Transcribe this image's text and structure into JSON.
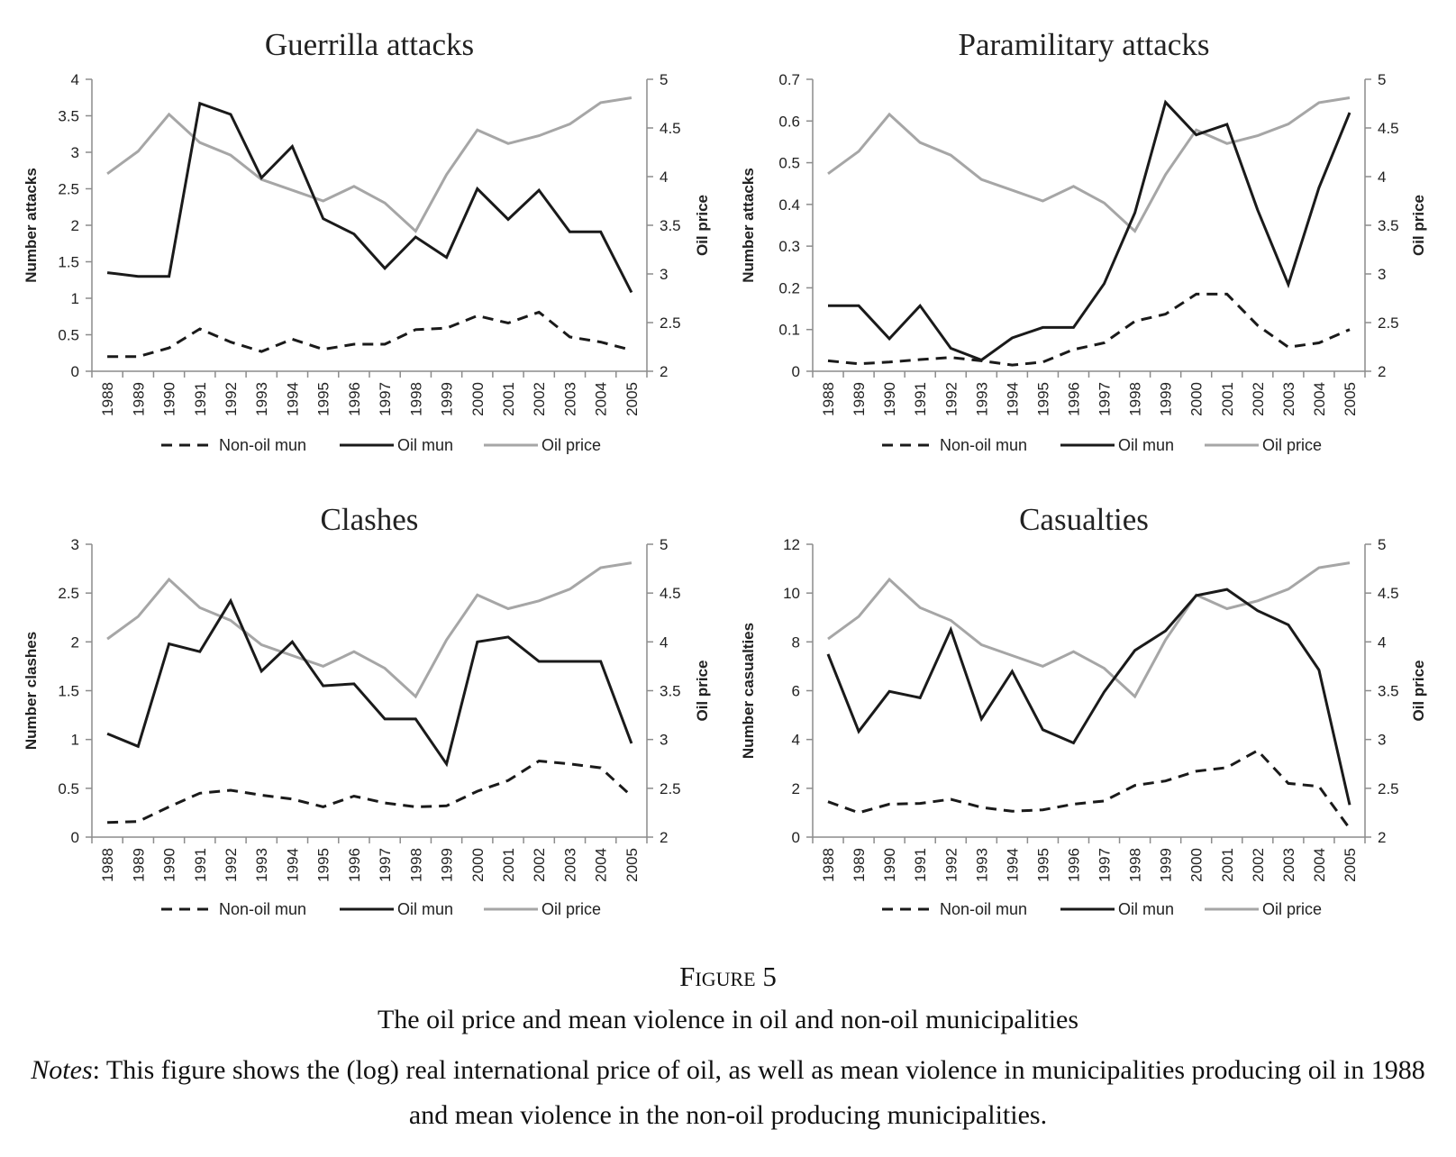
{
  "figure": {
    "label": "Figure 5",
    "title": "The oil price and mean violence in oil and non-oil municipalities",
    "notes_label": "Notes",
    "notes_text": ": This figure shows the (log) real international price of oil, as well as mean violence in municipalities producing oil in 1988 and mean violence in the non-oil producing municipalities."
  },
  "legend_labels": [
    "Non-oil mun",
    "Oil mun",
    "Oil price"
  ],
  "colors": {
    "non_oil": "#1a1a1a",
    "oil_mun": "#1a1a1a",
    "oil_price": "#a6a6a6",
    "axis": "#8c8c8c"
  },
  "chart_data": [
    {
      "type": "line",
      "title": "Guerrilla attacks",
      "ylabel": "Number attacks",
      "y2label": "Oil price",
      "ylim": [
        0,
        4
      ],
      "yticks": [
        "0",
        "0.5",
        "1",
        "1.5",
        "2",
        "2.5",
        "3",
        "3.5",
        "4"
      ],
      "y2lim": [
        2,
        5
      ],
      "y2ticks": [
        "2",
        "2.5",
        "3",
        "3.5",
        "4",
        "4.5",
        "5"
      ],
      "categories": [
        "1988",
        "1989",
        "1990",
        "1991",
        "1992",
        "1993",
        "1994",
        "1995",
        "1996",
        "1997",
        "1998",
        "1999",
        "2000",
        "2001",
        "2002",
        "2003",
        "2004",
        "2005"
      ],
      "legend": "bottom",
      "series": [
        {
          "name": "Non-oil mun",
          "axis": "left",
          "style": "dashed",
          "values": [
            0.2,
            0.2,
            0.32,
            0.58,
            0.4,
            0.27,
            0.44,
            0.3,
            0.37,
            0.37,
            0.57,
            0.59,
            0.76,
            0.66,
            0.81,
            0.47,
            0.4,
            0.29
          ]
        },
        {
          "name": "Oil mun",
          "axis": "left",
          "style": "solid",
          "values": [
            1.35,
            1.3,
            1.3,
            3.67,
            3.52,
            2.65,
            3.08,
            2.09,
            1.88,
            1.41,
            1.84,
            1.56,
            2.5,
            2.08,
            2.48,
            1.91,
            1.91,
            1.08
          ]
        },
        {
          "name": "Oil price",
          "axis": "right",
          "style": "gray",
          "values": [
            4.03,
            4.26,
            4.64,
            4.35,
            4.22,
            3.97,
            3.86,
            3.75,
            3.9,
            3.73,
            3.44,
            4.02,
            4.48,
            4.34,
            4.42,
            4.54,
            4.76,
            4.81
          ]
        }
      ]
    },
    {
      "type": "line",
      "title": "Paramilitary attacks",
      "ylabel": "Number attacks",
      "y2label": "Oil price",
      "ylim": [
        0,
        0.7
      ],
      "yticks": [
        "0",
        "0.1",
        "0.2",
        "0.3",
        "0.4",
        "0.5",
        "0.6",
        "0.7"
      ],
      "y2lim": [
        2,
        5
      ],
      "y2ticks": [
        "2",
        "2.5",
        "3",
        "3.5",
        "4",
        "4.5",
        "5"
      ],
      "categories": [
        "1988",
        "1989",
        "1990",
        "1991",
        "1992",
        "1993",
        "1994",
        "1995",
        "1996",
        "1997",
        "1998",
        "1999",
        "2000",
        "2001",
        "2002",
        "2003",
        "2004",
        "2005"
      ],
      "legend": "bottom",
      "series": [
        {
          "name": "Non-oil mun",
          "axis": "left",
          "style": "dashed",
          "values": [
            0.025,
            0.018,
            0.022,
            0.028,
            0.033,
            0.025,
            0.015,
            0.022,
            0.052,
            0.068,
            0.12,
            0.137,
            0.185,
            0.185,
            0.11,
            0.058,
            0.068,
            0.1
          ]
        },
        {
          "name": "Oil mun",
          "axis": "left",
          "style": "solid",
          "values": [
            0.157,
            0.157,
            0.078,
            0.157,
            0.055,
            0.027,
            0.08,
            0.105,
            0.105,
            0.21,
            0.38,
            0.645,
            0.567,
            0.592,
            0.387,
            0.208,
            0.44,
            0.62
          ]
        },
        {
          "name": "Oil price",
          "axis": "right",
          "style": "gray",
          "values": [
            4.03,
            4.26,
            4.64,
            4.35,
            4.22,
            3.97,
            3.86,
            3.75,
            3.9,
            3.73,
            3.44,
            4.02,
            4.48,
            4.34,
            4.42,
            4.54,
            4.76,
            4.81
          ]
        }
      ]
    },
    {
      "type": "line",
      "title": "Clashes",
      "ylabel": "Number clashes",
      "y2label": "Oil price",
      "ylim": [
        0,
        3
      ],
      "yticks": [
        "0",
        "0.5",
        "1",
        "1.5",
        "2",
        "2.5",
        "3"
      ],
      "y2lim": [
        2,
        5
      ],
      "y2ticks": [
        "2",
        "2.5",
        "3",
        "3.5",
        "4",
        "4.5",
        "5"
      ],
      "categories": [
        "1988",
        "1989",
        "1990",
        "1991",
        "1992",
        "1993",
        "1994",
        "1995",
        "1996",
        "1997",
        "1998",
        "1999",
        "2000",
        "2001",
        "2002",
        "2003",
        "2004",
        "2005"
      ],
      "legend": "bottom",
      "series": [
        {
          "name": "Non-oil mun",
          "axis": "left",
          "style": "dashed",
          "values": [
            0.15,
            0.16,
            0.31,
            0.45,
            0.48,
            0.43,
            0.39,
            0.31,
            0.42,
            0.35,
            0.31,
            0.32,
            0.47,
            0.58,
            0.78,
            0.75,
            0.71,
            0.42
          ]
        },
        {
          "name": "Oil mun",
          "axis": "left",
          "style": "solid",
          "values": [
            1.06,
            0.93,
            1.98,
            1.9,
            2.42,
            1.7,
            2.0,
            1.55,
            1.57,
            1.21,
            1.21,
            0.75,
            2.0,
            2.05,
            1.8,
            1.8,
            1.8,
            0.96
          ]
        },
        {
          "name": "Oil price",
          "axis": "right",
          "style": "gray",
          "values": [
            4.03,
            4.26,
            4.64,
            4.35,
            4.22,
            3.97,
            3.86,
            3.75,
            3.9,
            3.73,
            3.44,
            4.02,
            4.48,
            4.34,
            4.42,
            4.54,
            4.76,
            4.81
          ]
        }
      ]
    },
    {
      "type": "line",
      "title": "Casualties",
      "ylabel": "Number casualties",
      "y2label": "Oil price",
      "ylim": [
        0,
        12
      ],
      "yticks": [
        "0",
        "2",
        "4",
        "6",
        "8",
        "10",
        "12"
      ],
      "y2lim": [
        2,
        5
      ],
      "y2ticks": [
        "2",
        "2.5",
        "3",
        "3.5",
        "4",
        "4.5",
        "5"
      ],
      "categories": [
        "1988",
        "1989",
        "1990",
        "1991",
        "1992",
        "1993",
        "1994",
        "1995",
        "1996",
        "1997",
        "1998",
        "1999",
        "2000",
        "2001",
        "2002",
        "2003",
        "2004",
        "2005"
      ],
      "legend": "bottom",
      "series": [
        {
          "name": "Non-oil mun",
          "axis": "left",
          "style": "dashed",
          "values": [
            1.45,
            1.0,
            1.35,
            1.38,
            1.55,
            1.22,
            1.06,
            1.12,
            1.35,
            1.48,
            2.12,
            2.3,
            2.7,
            2.85,
            3.55,
            2.2,
            2.08,
            0.35
          ]
        },
        {
          "name": "Oil mun",
          "axis": "left",
          "style": "solid",
          "values": [
            7.5,
            4.33,
            5.97,
            5.71,
            8.5,
            4.84,
            6.79,
            4.4,
            3.86,
            5.95,
            7.65,
            8.45,
            9.9,
            10.15,
            9.28,
            8.7,
            6.85,
            1.32
          ]
        },
        {
          "name": "Oil price",
          "axis": "right",
          "style": "gray",
          "values": [
            4.03,
            4.26,
            4.64,
            4.35,
            4.22,
            3.97,
            3.86,
            3.75,
            3.9,
            3.73,
            3.44,
            4.02,
            4.48,
            4.34,
            4.42,
            4.54,
            4.76,
            4.81
          ]
        }
      ]
    }
  ]
}
